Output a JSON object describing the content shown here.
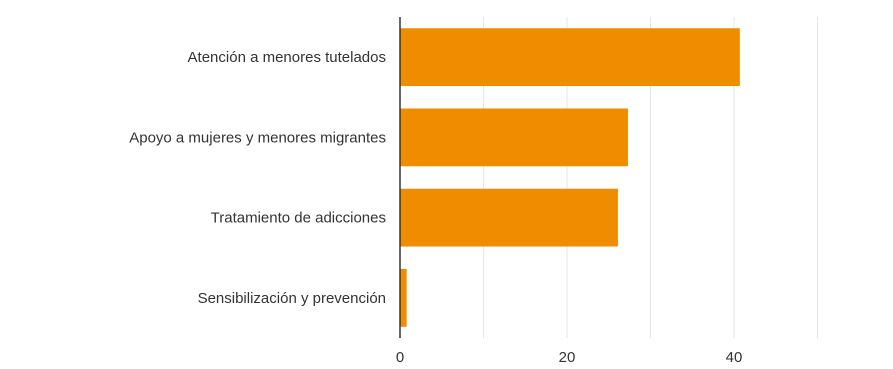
{
  "chart_data": {
    "type": "bar",
    "orientation": "horizontal",
    "categories": [
      "Atención a menores tutelados",
      "Apoyo a mujeres y menores migrantes",
      "Tratamiento de adicciones",
      "Sensibilización y prevención"
    ],
    "values": [
      40.7,
      27.3,
      26.1,
      0.8
    ],
    "xlim": [
      0,
      50
    ],
    "x_ticks": [
      0,
      20,
      40
    ],
    "x_tick_labels": [
      "0",
      "20",
      "40"
    ],
    "grid": true,
    "legend": "none",
    "colors": {
      "bar": "#f08c00",
      "grid": "#e6e6e6",
      "axis": "#333333",
      "label": "#333333"
    }
  }
}
